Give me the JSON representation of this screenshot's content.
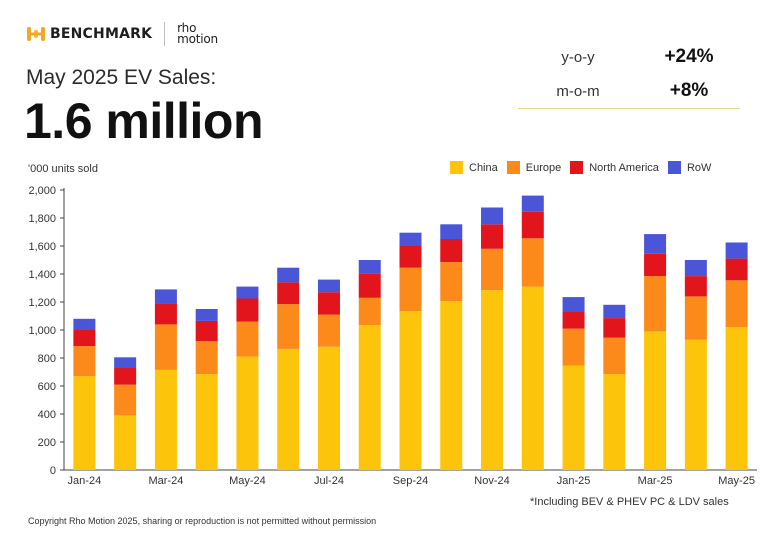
{
  "brand": {
    "primary": "BENCHMARK",
    "secondary_line1": "rho",
    "secondary_line2": "motion"
  },
  "subtitle": "May 2025 EV Sales:",
  "headline": "1.6 million",
  "stats": [
    {
      "label": "y-o-y",
      "value": "+24%"
    },
    {
      "label": "m-o-m",
      "value": "+8%"
    }
  ],
  "colors": {
    "China": "#fcc40a",
    "Europe": "#fb8a1b",
    "North America": "#e1151b",
    "RoW": "#4b55d8",
    "accent": "#e7d58a"
  },
  "footnote": "*Including BEV & PHEV PC & LDV sales",
  "copyright": "Copyright Rho Motion 2025, sharing or reproduction is not permitted without permission",
  "chart_data": {
    "type": "bar",
    "stacked": true,
    "ylabel": "'000 units sold",
    "ylim": [
      0,
      2000
    ],
    "yticks": [
      0,
      200,
      400,
      600,
      800,
      1000,
      1200,
      1400,
      1600,
      1800,
      2000
    ],
    "ytick_labels": [
      "0",
      "200",
      "400",
      "600",
      "800",
      "1,000",
      "1,200",
      "1,400",
      "1,600",
      "1,800",
      "2,000"
    ],
    "categories": [
      "Jan-24",
      "Feb-24",
      "Mar-24",
      "Apr-24",
      "May-24",
      "Jun-24",
      "Jul-24",
      "Aug-24",
      "Sep-24",
      "Oct-24",
      "Nov-24",
      "Dec-24",
      "Jan-25",
      "Feb-25",
      "Mar-25",
      "Apr-25",
      "May-25"
    ],
    "xtick_labels": [
      "Jan-24",
      "",
      "Mar-24",
      "",
      "May-24",
      "",
      "Jul-24",
      "",
      "Sep-24",
      "",
      "Nov-24",
      "",
      "Jan-25",
      "",
      "Mar-25",
      "",
      "May-25"
    ],
    "legend_position": "top-right",
    "series": [
      {
        "name": "China",
        "values": [
          670,
          390,
          715,
          685,
          810,
          865,
          880,
          1035,
          1135,
          1205,
          1285,
          1310,
          745,
          685,
          990,
          930,
          1020
        ]
      },
      {
        "name": "Europe",
        "values": [
          215,
          220,
          325,
          235,
          250,
          320,
          230,
          195,
          310,
          280,
          295,
          345,
          265,
          260,
          395,
          310,
          335
        ]
      },
      {
        "name": "North America",
        "values": [
          115,
          125,
          150,
          145,
          165,
          155,
          160,
          175,
          155,
          165,
          175,
          190,
          125,
          140,
          160,
          145,
          155
        ]
      },
      {
        "name": "RoW",
        "values": [
          80,
          70,
          100,
          85,
          85,
          105,
          90,
          95,
          95,
          105,
          120,
          115,
          100,
          95,
          140,
          115,
          115
        ]
      }
    ]
  }
}
